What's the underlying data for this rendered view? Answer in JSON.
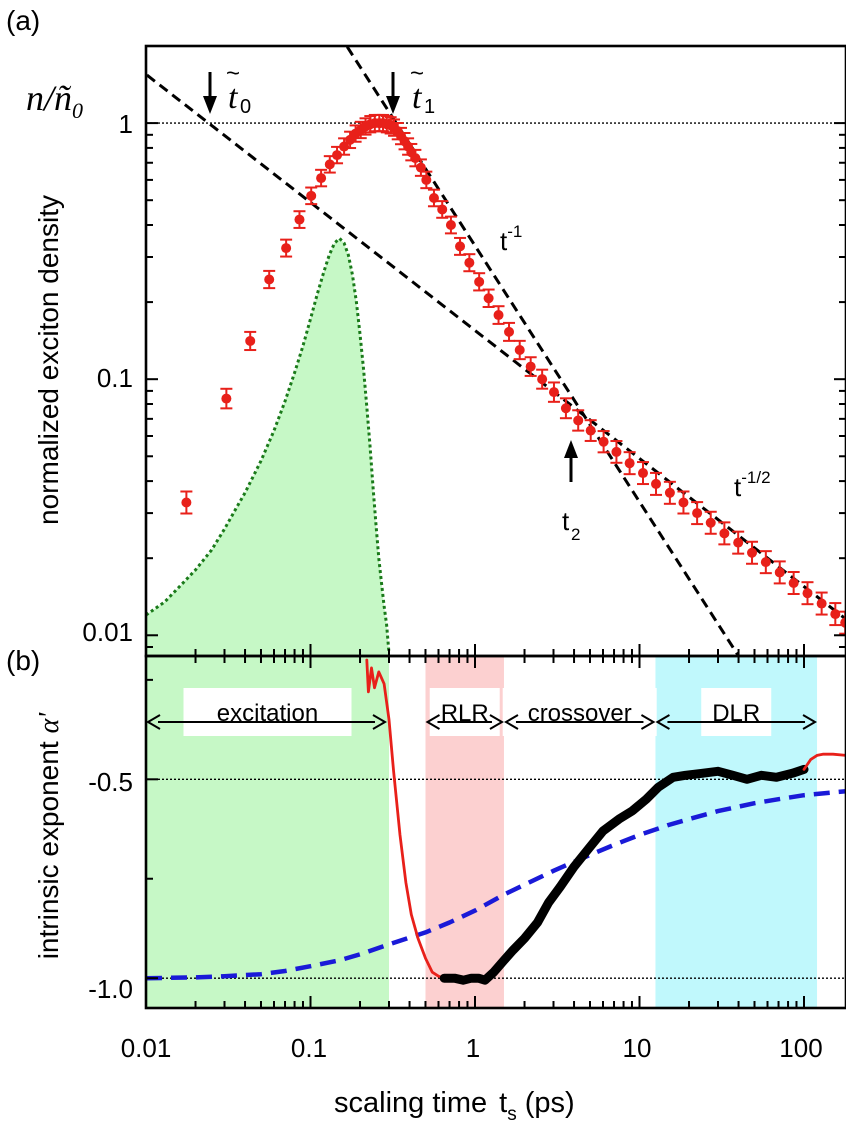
{
  "chart_data": [
    {
      "panel_label": "(a)",
      "type": "scatter",
      "x_scale": "log",
      "y_scale": "log",
      "xlim": [
        0.01,
        180
      ],
      "ylim": [
        0.0083,
        2.0
      ],
      "ylabel": "normalized exciton density",
      "ylabel_corner": "n/ñ0",
      "y_ticks": [
        {
          "value": 1,
          "label": "1"
        },
        {
          "value": 0.1,
          "label": "0.1"
        },
        {
          "value": 0.01,
          "label": "0.01"
        }
      ],
      "reference_line_y": 1,
      "measured_points": {
        "x": [
          0.0176,
          0.0308,
          0.043,
          0.0561,
          0.0711,
          0.0857,
          0.101,
          0.116,
          0.131,
          0.145,
          0.16,
          0.174,
          0.188,
          0.202,
          0.216,
          0.231,
          0.246,
          0.262,
          0.276,
          0.291,
          0.307,
          0.322,
          0.339,
          0.355,
          0.373,
          0.392,
          0.41,
          0.434,
          0.469,
          0.506,
          0.563,
          0.632,
          0.714,
          0.811,
          0.924,
          1.06,
          1.21,
          1.39,
          1.61,
          1.87,
          2.18,
          2.56,
          3.02,
          3.57,
          4.24,
          5.05,
          6.05,
          7.24,
          8.71,
          10.5,
          12.6,
          15.3,
          18.5,
          22.4,
          27.1,
          32.8,
          39.8,
          48.3,
          58.6,
          71.2,
          86.5,
          105,
          128,
          155,
          178
        ],
        "y": [
          0.033,
          0.084,
          0.141,
          0.245,
          0.325,
          0.42,
          0.52,
          0.61,
          0.69,
          0.75,
          0.81,
          0.86,
          0.91,
          0.94,
          0.97,
          0.99,
          1.0,
          1.0,
          1.0,
          0.99,
          0.98,
          0.96,
          0.93,
          0.89,
          0.85,
          0.81,
          0.77,
          0.73,
          0.67,
          0.6,
          0.51,
          0.46,
          0.4,
          0.33,
          0.285,
          0.24,
          0.207,
          0.178,
          0.153,
          0.13,
          0.112,
          0.1,
          0.089,
          0.077,
          0.069,
          0.063,
          0.057,
          0.052,
          0.047,
          0.043,
          0.039,
          0.036,
          0.033,
          0.03,
          0.0275,
          0.025,
          0.023,
          0.021,
          0.0193,
          0.0176,
          0.016,
          0.0146,
          0.0133,
          0.0121,
          0.0112
        ],
        "color": "#e8201a"
      },
      "excitation_profile": {
        "x": [
          0.01,
          0.013,
          0.016,
          0.02,
          0.025,
          0.03,
          0.035,
          0.04,
          0.05,
          0.06,
          0.07,
          0.08,
          0.09,
          0.1,
          0.11,
          0.12,
          0.13,
          0.14,
          0.15,
          0.16,
          0.17,
          0.18,
          0.19,
          0.2,
          0.21,
          0.22,
          0.23,
          0.24,
          0.25,
          0.26,
          0.27,
          0.28,
          0.29,
          0.3
        ],
        "y": [
          0.012,
          0.0135,
          0.0155,
          0.018,
          0.0215,
          0.026,
          0.031,
          0.036,
          0.048,
          0.063,
          0.082,
          0.106,
          0.135,
          0.172,
          0.215,
          0.26,
          0.305,
          0.34,
          0.355,
          0.34,
          0.305,
          0.255,
          0.2,
          0.15,
          0.11,
          0.078,
          0.055,
          0.038,
          0.027,
          0.02,
          0.016,
          0.013,
          0.011,
          0.0085
        ],
        "stroke": "#1a7a1a",
        "fill": "#c6f8c6"
      },
      "guide_lines": [
        {
          "label": "t-1",
          "slope": -1,
          "through": [
            1,
            0.332
          ]
        },
        {
          "label": "t-1/2",
          "slope": -0.5,
          "through": [
            1,
            0.155
          ]
        }
      ],
      "annotations": [
        {
          "base": "t",
          "tilde": "~",
          "sub": "0",
          "x": 0.024,
          "arrow": "down"
        },
        {
          "base": "t",
          "tilde": "~",
          "sub": "1",
          "x": 0.31,
          "arrow": "down"
        },
        {
          "base": "t",
          "sub": "2",
          "x": 4.0,
          "arrow": "up"
        },
        {
          "base": "t",
          "sup": "-1",
          "role": "slope label"
        },
        {
          "base": "t",
          "sup": "-1/2",
          "role": "slope label"
        }
      ]
    },
    {
      "panel_label": "(b)",
      "type": "line",
      "x_scale": "log",
      "xlim": [
        0.01,
        180
      ],
      "ylim": [
        -1.075,
        -0.19
      ],
      "xlabel": "scaling time",
      "xlabel_var": "t",
      "xlabel_sub": "s",
      "xlabel_unit": "(ps)",
      "ylabel": "intrinsic exponent",
      "ylabel_symbol": "α'",
      "x_ticks": [
        {
          "value": 0.01,
          "label": "0.01"
        },
        {
          "value": 0.1,
          "label": "0.1"
        },
        {
          "value": 1,
          "label": "1"
        },
        {
          "value": 10,
          "label": "10"
        },
        {
          "value": 100,
          "label": "100"
        }
      ],
      "y_ticks": [
        {
          "value": -0.5,
          "label": "-0.5"
        },
        {
          "value": -1.0,
          "label": "-1.0"
        }
      ],
      "reference_lines_y": [
        -0.5,
        -1.0
      ],
      "regions": [
        {
          "label": "excitation",
          "x_from": 0.01,
          "x_to": 0.3,
          "color": "#c6f8c6"
        },
        {
          "label": "RLR",
          "x_from": 0.5,
          "x_to": 1.5,
          "color": "#fcd0d0"
        },
        {
          "label": "crossover",
          "x_from": 1.5,
          "x_to": 12.5,
          "color": "#ffffff"
        },
        {
          "label": "DLR",
          "x_from": 12.5,
          "x_to": 120,
          "color": "#c0f8fc"
        }
      ],
      "series": [
        {
          "role": "measured exponent",
          "color": "#e8201a",
          "x": [
            0.22,
            0.225,
            0.235,
            0.245,
            0.26,
            0.28,
            0.3,
            0.32,
            0.35,
            0.38,
            0.41,
            0.45,
            0.5,
            0.55,
            0.6,
            0.65
          ],
          "y": [
            -0.2,
            -0.28,
            -0.22,
            -0.27,
            -0.23,
            -0.26,
            -0.35,
            -0.48,
            -0.64,
            -0.76,
            -0.84,
            -0.9,
            -0.95,
            -0.985,
            -0.995,
            -1.0
          ]
        },
        {
          "role": "measured exponent (bold)",
          "color": "#000000",
          "x": [
            0.65,
            0.75,
            0.85,
            0.95,
            1.05,
            1.15,
            1.3,
            1.5,
            1.7,
            2.0,
            2.4,
            2.8,
            3.3,
            4.0,
            5.0,
            6.0,
            7.5,
            9.0,
            11.0,
            13.0,
            16.0,
            19.0,
            24.0,
            30.0,
            37.0,
            45.0,
            55.0,
            68.0,
            85.0,
            100.0
          ],
          "y": [
            -1.0,
            -1.0,
            -1.005,
            -1.0,
            -1.0,
            -1.005,
            -0.985,
            -0.955,
            -0.93,
            -0.9,
            -0.86,
            -0.81,
            -0.77,
            -0.72,
            -0.67,
            -0.63,
            -0.6,
            -0.58,
            -0.55,
            -0.52,
            -0.495,
            -0.49,
            -0.485,
            -0.48,
            -0.49,
            -0.5,
            -0.49,
            -0.495,
            -0.485,
            -0.475
          ]
        },
        {
          "role": "measured exponent",
          "color": "#e8201a",
          "x": [
            100,
            110,
            120,
            130,
            150,
            180
          ],
          "y": [
            -0.475,
            -0.45,
            -0.44,
            -0.437,
            -0.437,
            -0.44
          ]
        },
        {
          "role": "model",
          "style": "dashed",
          "color": "#1a1ad8",
          "x": [
            0.01,
            0.02,
            0.03,
            0.05,
            0.07,
            0.1,
            0.15,
            0.2,
            0.3,
            0.5,
            0.7,
            1,
            1.5,
            2,
            3,
            5,
            7,
            10,
            15,
            20,
            30,
            50,
            70,
            100,
            150,
            180
          ],
          "y": [
            -1.0,
            -0.998,
            -0.995,
            -0.99,
            -0.982,
            -0.97,
            -0.955,
            -0.94,
            -0.915,
            -0.885,
            -0.86,
            -0.83,
            -0.79,
            -0.765,
            -0.73,
            -0.69,
            -0.665,
            -0.64,
            -0.615,
            -0.6,
            -0.58,
            -0.56,
            -0.55,
            -0.54,
            -0.533,
            -0.53
          ]
        }
      ]
    }
  ]
}
